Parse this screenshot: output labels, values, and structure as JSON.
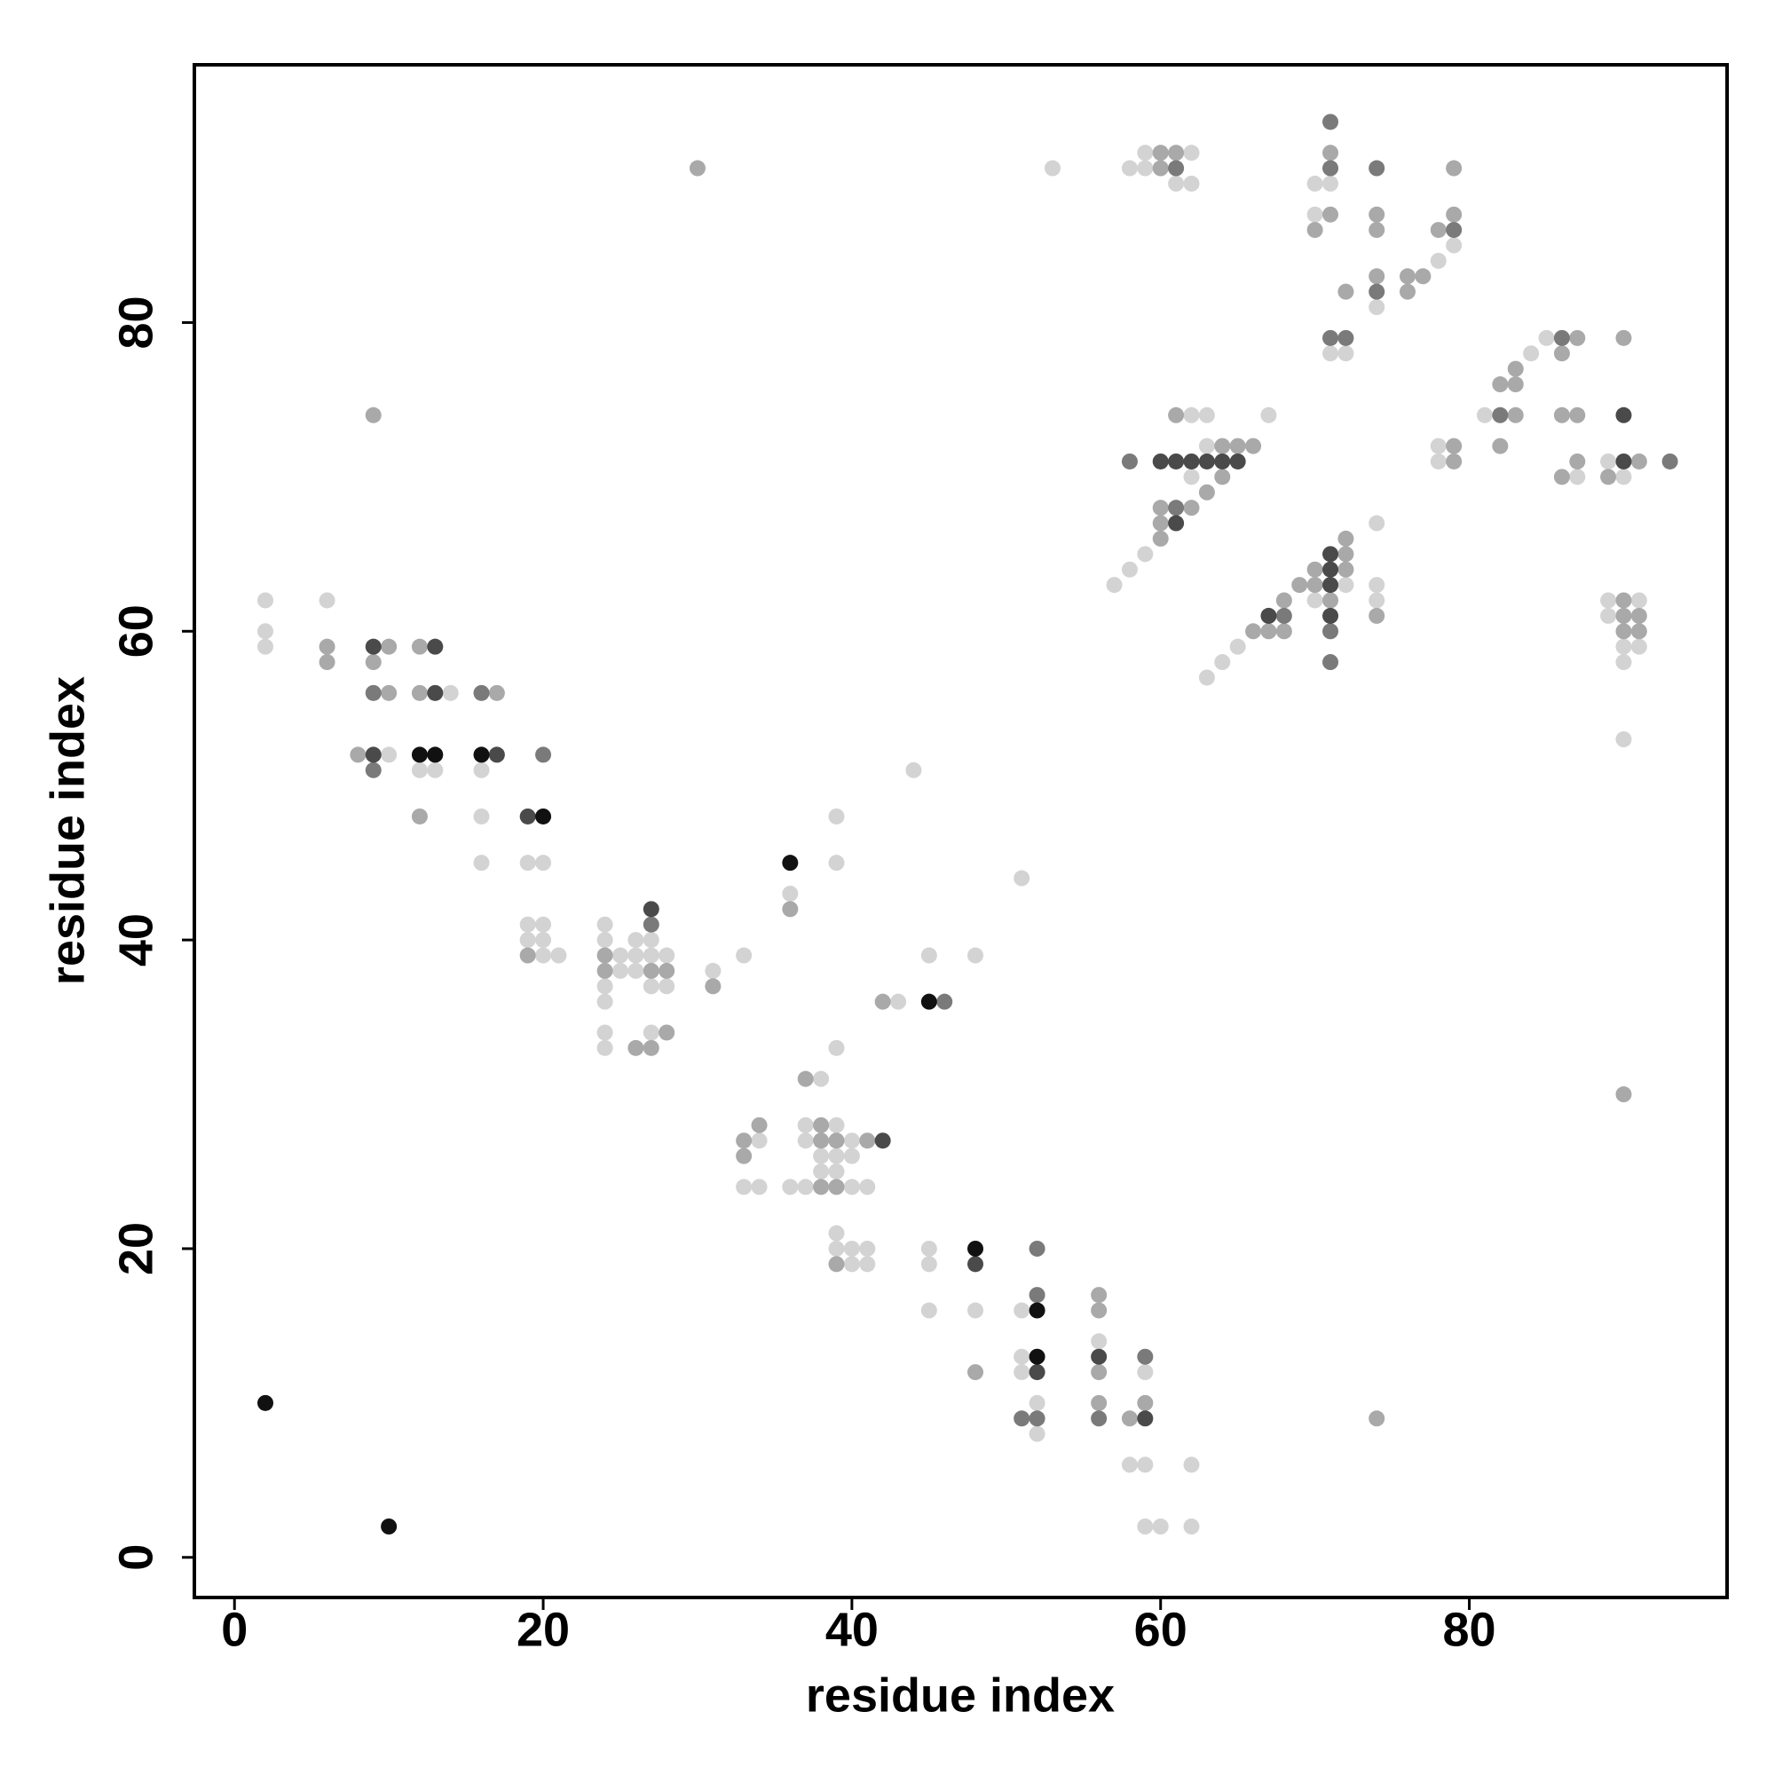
{
  "chart_data": {
    "type": "scatter",
    "xlabel": "residue index",
    "ylabel": "residue index",
    "xlim": [
      -2.6,
      96.7
    ],
    "ylim": [
      -2.6,
      96.7
    ],
    "xticks": [
      0,
      20,
      40,
      60,
      80
    ],
    "yticks": [
      0,
      20,
      40,
      60,
      80
    ],
    "series": [
      {
        "color": "#d3d3d3",
        "x": [
          53,
          2,
          2,
          2,
          6,
          10,
          12,
          13,
          14,
          16,
          16,
          16,
          19,
          19,
          19,
          20,
          20,
          20,
          20,
          21,
          24,
          24,
          24,
          24,
          24,
          24,
          25,
          25,
          26,
          26,
          26,
          27,
          27,
          27,
          27,
          28,
          28,
          31,
          33,
          33,
          34,
          34,
          36,
          36,
          37,
          37,
          37,
          38,
          38,
          38,
          39,
          39,
          39,
          39,
          39,
          39,
          39,
          39,
          40,
          40,
          40,
          40,
          40,
          41,
          41,
          41,
          43,
          44,
          45,
          45,
          45,
          45,
          48,
          48,
          51,
          51,
          51,
          51,
          52,
          52,
          56,
          58,
          59,
          59,
          59,
          60,
          62,
          62,
          57,
          58,
          58,
          59,
          59,
          59,
          61,
          62,
          62,
          62,
          62,
          63,
          63,
          63,
          64,
          65,
          67,
          70,
          70,
          70,
          71,
          71,
          72,
          72,
          74,
          74,
          74,
          74,
          78,
          78,
          78,
          79,
          81,
          84,
          85,
          87,
          89,
          89,
          89,
          90,
          90,
          90,
          90,
          91,
          91
        ],
        "values": [
          90,
          62,
          60,
          59,
          62,
          52,
          51,
          51,
          56,
          51,
          48,
          45,
          45,
          41,
          40,
          45,
          41,
          40,
          39,
          39,
          41,
          40,
          37,
          36,
          34,
          33,
          39,
          38,
          40,
          39,
          38,
          40,
          39,
          37,
          34,
          39,
          37,
          38,
          39,
          24,
          27,
          24,
          43,
          24,
          28,
          27,
          24,
          31,
          26,
          25,
          48,
          45,
          33,
          28,
          26,
          25,
          21,
          20,
          27,
          26,
          24,
          20,
          19,
          24,
          20,
          19,
          36,
          51,
          39,
          20,
          19,
          16,
          39,
          16,
          44,
          16,
          13,
          12,
          10,
          8,
          14,
          6,
          12,
          6,
          2,
          2,
          6,
          2,
          63,
          90,
          64,
          91,
          90,
          65,
          89,
          91,
          89,
          74,
          70,
          74,
          72,
          57,
          58,
          59,
          74,
          89,
          87,
          62,
          89,
          78,
          78,
          63,
          81,
          67,
          63,
          62,
          84,
          72,
          71,
          85,
          74,
          78,
          79,
          70,
          71,
          62,
          61,
          70,
          59,
          58,
          53,
          62,
          59
        ]
      },
      {
        "color": "#a9a9a9",
        "x": [
          30,
          6,
          6,
          9,
          9,
          8,
          10,
          10,
          12,
          12,
          12,
          17,
          19,
          24,
          24,
          26,
          27,
          27,
          28,
          28,
          31,
          33,
          33,
          34,
          36,
          37,
          38,
          38,
          38,
          39,
          39,
          39,
          41,
          42,
          48,
          56,
          56,
          56,
          56,
          58,
          59,
          60,
          60,
          60,
          60,
          60,
          61,
          61,
          62,
          63,
          64,
          64,
          65,
          66,
          66,
          67,
          68,
          68,
          69,
          70,
          70,
          70,
          71,
          71,
          71,
          72,
          72,
          72,
          72,
          74,
          74,
          74,
          74,
          74,
          76,
          76,
          77,
          78,
          79,
          79,
          79,
          79,
          82,
          82,
          83,
          83,
          83,
          86,
          86,
          86,
          87,
          87,
          87,
          89,
          90,
          90,
          90,
          90,
          90,
          91,
          91,
          91
        ],
        "values": [
          90,
          59,
          58,
          74,
          58,
          52,
          59,
          56,
          59,
          56,
          48,
          56,
          39,
          39,
          38,
          33,
          38,
          33,
          38,
          34,
          37,
          27,
          26,
          28,
          42,
          31,
          28,
          27,
          24,
          27,
          24,
          19,
          27,
          36,
          12,
          17,
          16,
          12,
          10,
          9,
          10,
          91,
          90,
          68,
          67,
          66,
          91,
          74,
          68,
          69,
          72,
          70,
          72,
          72,
          60,
          60,
          62,
          60,
          63,
          86,
          64,
          63,
          91,
          87,
          62,
          82,
          66,
          65,
          64,
          87,
          86,
          83,
          61,
          9,
          83,
          82,
          83,
          86,
          90,
          87,
          72,
          71,
          76,
          72,
          77,
          76,
          74,
          78,
          74,
          70,
          79,
          74,
          71,
          70,
          79,
          62,
          61,
          60,
          30,
          71,
          61,
          60
        ]
      },
      {
        "color": "#7a7a7a",
        "x": [
          9,
          9,
          16,
          20,
          27,
          46,
          51,
          52,
          52,
          52,
          56,
          59,
          58,
          61,
          61,
          68,
          71,
          71,
          71,
          71,
          71,
          72,
          74,
          74,
          79,
          82,
          86,
          93
        ],
        "values": [
          56,
          51,
          56,
          52,
          41,
          36,
          9,
          20,
          17,
          9,
          9,
          13,
          71,
          90,
          68,
          61,
          93,
          90,
          79,
          60,
          58,
          79,
          90,
          82,
          86,
          74,
          79,
          71
        ]
      },
      {
        "color": "#4a4a4a",
        "x": [
          9,
          9,
          13,
          13,
          17,
          19,
          27,
          42,
          48,
          52,
          56,
          59,
          60,
          61,
          61,
          62,
          63,
          64,
          65,
          67,
          71,
          71,
          71,
          71,
          90,
          90
        ],
        "values": [
          59,
          52,
          59,
          56,
          52,
          48,
          42,
          27,
          19,
          12,
          13,
          9,
          71,
          71,
          67,
          71,
          71,
          71,
          71,
          61,
          65,
          64,
          63,
          61,
          74,
          71
        ]
      },
      {
        "color": "#111111",
        "x": [
          2,
          10,
          12,
          13,
          16,
          20,
          36,
          45,
          48,
          52,
          52
        ],
        "values": [
          10,
          2,
          52,
          52,
          52,
          48,
          45,
          36,
          20,
          16,
          13
        ]
      }
    ]
  }
}
